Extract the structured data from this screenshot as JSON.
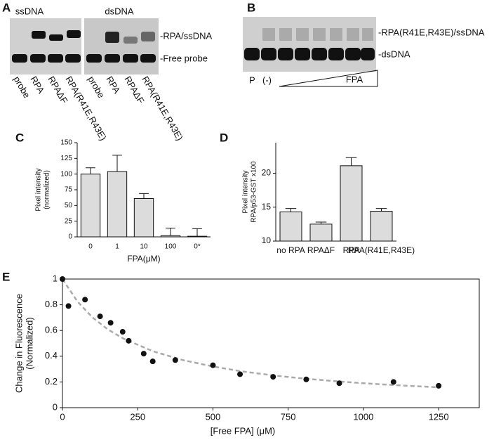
{
  "gels": [
    {
      "letter": "A",
      "headers": [
        "ssDNA",
        "dsDNA"
      ],
      "band_labels": [
        "-RPA/ssDNA",
        "-Free probe"
      ],
      "lanes": [
        "probe",
        "RPA",
        "RPAΔF",
        "RPA(R41E,R43E)",
        "probe",
        "RPA",
        "RPAΔF",
        "RPA(R41E,R43E)"
      ]
    },
    {
      "letter": "B",
      "band_labels": [
        "-RPA(R41E,R43E)/ssDNA",
        "-dsDNA"
      ],
      "lane_labels": [
        "P",
        "(-)"
      ],
      "gradient_label": "FPA"
    }
  ],
  "chart_data": [
    {
      "type": "bar",
      "panel": "C",
      "categories": [
        "0",
        "1",
        "10",
        "100",
        "0*"
      ],
      "values": [
        100,
        104,
        61,
        2,
        1
      ],
      "errors": [
        10,
        26,
        8,
        12,
        12
      ],
      "color": "#dcdcdc",
      "ylim": [
        0,
        150
      ],
      "yticks": [
        0,
        25,
        50,
        75,
        100,
        125,
        150
      ],
      "ylabel": [
        "Pixel intensity",
        "(normalized)"
      ],
      "xlabel": "FPA(μM)"
    },
    {
      "type": "bar",
      "panel": "D",
      "categories": [
        "no RPA",
        "RPAΔF",
        "RPA",
        "RPA(R41E,R43E)"
      ],
      "values": [
        14.3,
        12.5,
        21.1,
        14.4
      ],
      "errors": [
        0.5,
        0.3,
        1.2,
        0.4
      ],
      "color": "#dcdcdc",
      "ylim": [
        10,
        24.5
      ],
      "yticks": [
        10,
        15,
        20
      ],
      "ylabel": [
        "Pixel intensity",
        "RPA/p53-GST x100"
      ]
    },
    {
      "type": "scatter",
      "panel": "E",
      "x": [
        0,
        20,
        75,
        125,
        160,
        200,
        220,
        270,
        300,
        375,
        500,
        590,
        700,
        810,
        920,
        1100,
        1250
      ],
      "values": [
        1.0,
        0.79,
        0.84,
        0.71,
        0.66,
        0.59,
        0.52,
        0.42,
        0.36,
        0.37,
        0.33,
        0.26,
        0.24,
        0.22,
        0.19,
        0.2,
        0.17
      ],
      "color": "#111111",
      "fit": {
        "x": [
          0,
          50,
          100,
          150,
          200,
          300,
          400,
          500,
          600,
          700,
          800,
          900,
          1000,
          1100,
          1250
        ],
        "values": [
          1,
          0.825,
          0.701,
          0.61,
          0.54,
          0.439,
          0.37,
          0.32,
          0.281,
          0.251,
          0.227,
          0.207,
          0.19,
          0.176,
          0.158
        ],
        "color": "#aaaaaa"
      },
      "xlim": [
        0,
        1385
      ],
      "xticks": [
        0,
        250,
        500,
        750,
        1000,
        1250
      ],
      "ylim": [
        0,
        1
      ],
      "yticks": [
        0,
        0.2,
        0.4,
        0.6,
        0.8,
        1
      ],
      "ylabel": [
        "Change in Fluorescence",
        "(Normalized)"
      ],
      "xlabel": "[Free FPA] (μM)"
    }
  ]
}
